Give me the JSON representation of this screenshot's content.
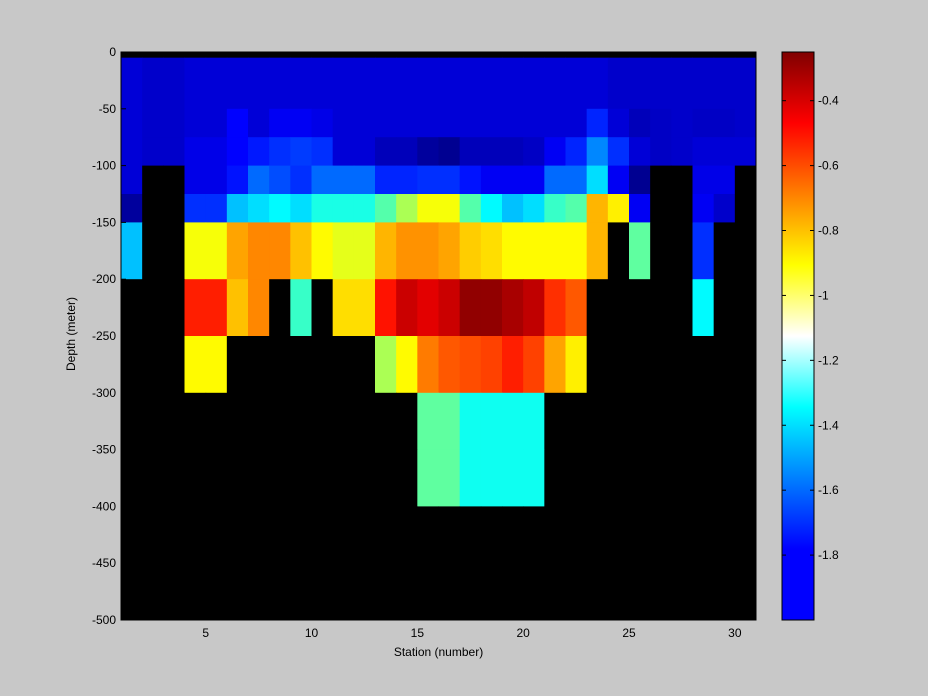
{
  "chart_data": {
    "type": "heatmap",
    "title": "",
    "xlabel": "Station (number)",
    "ylabel": "Depth (meter)",
    "xlim": [
      1,
      31
    ],
    "ylim": [
      -500,
      0
    ],
    "x_ticks": [
      5,
      10,
      15,
      20,
      25,
      30
    ],
    "y_ticks": [
      0,
      -50,
      -100,
      -150,
      -200,
      -250,
      -300,
      -350,
      -400,
      -450,
      -500
    ],
    "x": [
      1,
      2,
      3,
      4,
      5,
      6,
      7,
      8,
      9,
      10,
      11,
      12,
      13,
      14,
      15,
      16,
      17,
      18,
      19,
      20,
      21,
      22,
      23,
      24,
      25,
      26,
      27,
      28,
      29,
      30,
      31
    ],
    "depth_top": [
      0,
      -5,
      -50,
      -75,
      -100,
      -125,
      -150,
      -200,
      -250,
      -300,
      -350,
      -400,
      -450
    ],
    "depth_bottom": [
      -5,
      -50,
      -75,
      -100,
      -125,
      -150,
      -200,
      -250,
      -300,
      -350,
      -400,
      -450,
      -500
    ],
    "no_data_color": "#000000",
    "colorbar": {
      "colormap": "jet",
      "range": [
        -2.0,
        -0.25
      ],
      "ticks": [
        -0.4,
        -0.6,
        -0.8,
        -1,
        -1.2,
        -1.4,
        -1.6,
        -1.8
      ]
    },
    "values": [
      [
        null,
        null,
        null,
        null,
        null,
        null,
        null,
        null,
        null,
        null,
        null,
        null,
        null,
        null,
        null,
        null,
        null,
        null,
        null,
        null,
        null,
        null,
        null,
        null,
        null,
        null,
        null,
        null,
        null,
        null
      ],
      [
        -1.85,
        -1.87,
        -1.87,
        -1.85,
        -1.85,
        -1.85,
        -1.85,
        -1.85,
        -1.85,
        -1.85,
        -1.85,
        -1.85,
        -1.85,
        -1.85,
        -1.85,
        -1.85,
        -1.85,
        -1.85,
        -1.85,
        -1.85,
        -1.85,
        -1.85,
        -1.85,
        -1.87,
        -1.87,
        -1.87,
        -1.87,
        -1.87,
        -1.87,
        -1.87
      ],
      [
        -1.85,
        -1.87,
        -1.87,
        -1.85,
        -1.85,
        -1.78,
        -1.85,
        -1.8,
        -1.8,
        -1.82,
        -1.85,
        -1.85,
        -1.85,
        -1.85,
        -1.85,
        -1.85,
        -1.85,
        -1.85,
        -1.85,
        -1.85,
        -1.85,
        -1.85,
        -1.72,
        -1.85,
        -1.9,
        -1.88,
        -1.87,
        -1.88,
        -1.88,
        -1.87
      ],
      [
        -1.85,
        -1.87,
        -1.87,
        -1.82,
        -1.82,
        -1.78,
        -1.74,
        -1.7,
        -1.68,
        -1.7,
        -1.85,
        -1.85,
        -1.9,
        -1.9,
        -1.95,
        -1.97,
        -1.9,
        -1.9,
        -1.9,
        -1.88,
        -1.8,
        -1.72,
        -1.55,
        -1.7,
        -1.85,
        -1.88,
        -1.87,
        -1.85,
        -1.85,
        -1.85
      ],
      [
        -1.85,
        null,
        null,
        -1.82,
        -1.82,
        -1.75,
        -1.6,
        -1.65,
        -1.7,
        -1.6,
        -1.6,
        -1.6,
        -1.72,
        -1.72,
        -1.7,
        -1.7,
        -1.75,
        -1.8,
        -1.8,
        -1.8,
        -1.6,
        -1.6,
        -1.4,
        -1.8,
        -1.97,
        null,
        null,
        -1.82,
        -1.82,
        null
      ],
      [
        -1.95,
        null,
        null,
        -1.7,
        -1.7,
        -1.45,
        -1.4,
        -1.35,
        -1.4,
        -1.3,
        -1.3,
        -1.3,
        -1.2,
        -1.05,
        -0.92,
        -0.92,
        -1.2,
        -1.35,
        -1.45,
        -1.4,
        -1.25,
        -1.2,
        -0.78,
        -0.88,
        -1.8,
        null,
        null,
        -1.8,
        -1.87,
        null
      ],
      [
        -1.45,
        null,
        null,
        -0.92,
        -0.92,
        -0.75,
        -0.7,
        -0.7,
        -0.8,
        -0.9,
        -0.95,
        -0.95,
        -0.78,
        -0.72,
        -0.72,
        -0.75,
        -0.82,
        -0.85,
        -0.9,
        -0.9,
        -0.9,
        -0.9,
        -0.78,
        null,
        -1.18,
        null,
        null,
        -1.7,
        null,
        null
      ],
      [
        null,
        null,
        null,
        -0.52,
        -0.52,
        -0.8,
        -0.7,
        null,
        -1.25,
        null,
        -0.85,
        -0.85,
        -0.5,
        -0.38,
        -0.42,
        -0.38,
        -0.28,
        -0.28,
        -0.32,
        -0.36,
        -0.55,
        -0.62,
        null,
        null,
        null,
        null,
        null,
        -1.35,
        null,
        null
      ],
      [
        null,
        null,
        null,
        -0.9,
        -0.9,
        null,
        null,
        null,
        null,
        null,
        null,
        null,
        -1.05,
        -0.9,
        -0.68,
        -0.62,
        -0.6,
        -0.58,
        -0.52,
        -0.58,
        -0.75,
        -0.88,
        null,
        null,
        null,
        null,
        null,
        null,
        null,
        null
      ],
      [
        null,
        null,
        null,
        null,
        null,
        null,
        null,
        null,
        null,
        null,
        null,
        null,
        null,
        null,
        -1.18,
        -1.18,
        -1.32,
        -1.32,
        -1.32,
        -1.32,
        null,
        null,
        null,
        null,
        null,
        null,
        null,
        null,
        null,
        null
      ],
      [
        null,
        null,
        null,
        null,
        null,
        null,
        null,
        null,
        null,
        null,
        null,
        null,
        null,
        null,
        -1.18,
        -1.18,
        -1.32,
        -1.32,
        -1.32,
        -1.32,
        null,
        null,
        null,
        null,
        null,
        null,
        null,
        null,
        null,
        null
      ],
      [
        null,
        null,
        null,
        null,
        null,
        null,
        null,
        null,
        null,
        null,
        null,
        null,
        null,
        null,
        null,
        null,
        null,
        null,
        null,
        null,
        null,
        null,
        null,
        null,
        null,
        null,
        null,
        null,
        null,
        null
      ],
      [
        null,
        null,
        null,
        null,
        null,
        null,
        null,
        null,
        null,
        null,
        null,
        null,
        null,
        null,
        null,
        null,
        null,
        null,
        null,
        null,
        null,
        null,
        null,
        null,
        null,
        null,
        null,
        null,
        null,
        null
      ]
    ]
  }
}
